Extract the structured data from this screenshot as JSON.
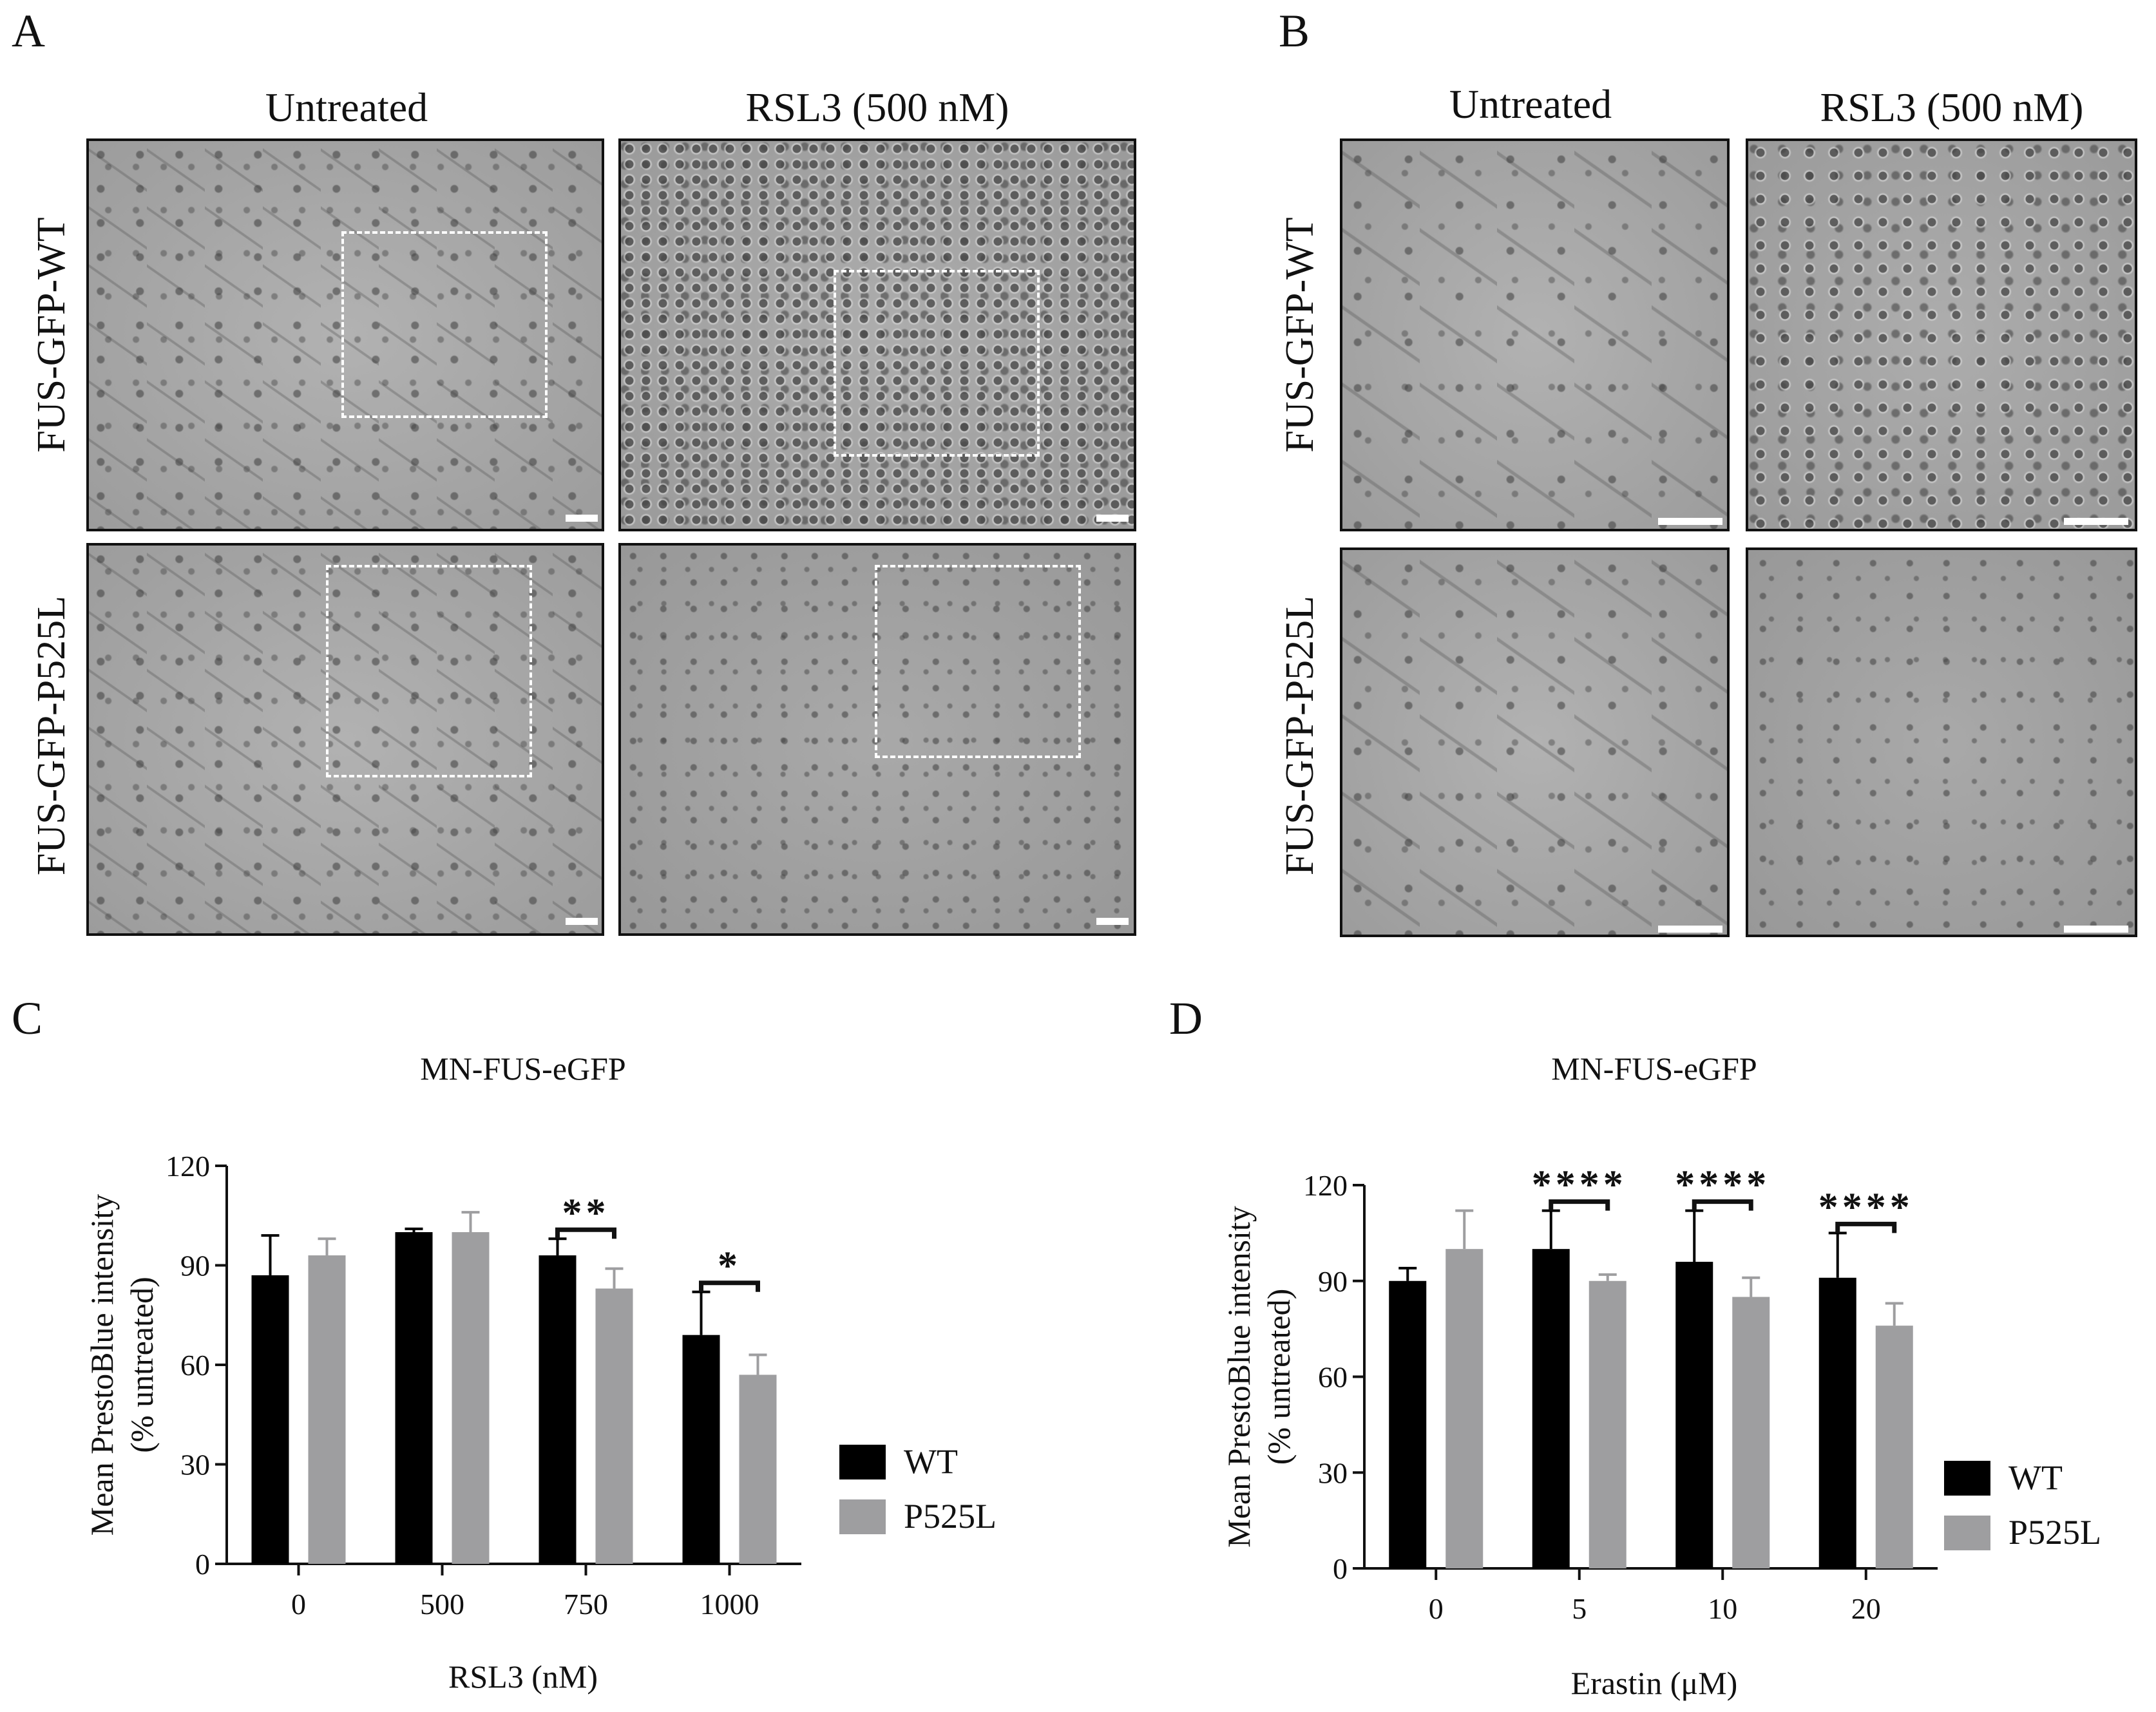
{
  "panels": {
    "A": {
      "label": "A",
      "columns": [
        "Untreated",
        "RSL3 (500 nM)"
      ],
      "rows": [
        "FUS-GFP-WT",
        "FUS-GFP-P525L"
      ]
    },
    "B": {
      "label": "B",
      "columns": [
        "Untreated",
        "RSL3 (500 nM)"
      ],
      "rows": [
        "FUS-GFP-WT",
        "FUS-GFP-P525L"
      ]
    },
    "C": {
      "label": "C"
    },
    "D": {
      "label": "D"
    }
  },
  "colors": {
    "WT": "#000000",
    "P525L": "#9e9ea0",
    "axis": "#111111",
    "image_border": "#111111",
    "inset_box": "#ffffff"
  },
  "chart_data": [
    {
      "type": "bar",
      "title": "MN-FUS-eGFP",
      "xlabel": "RSL3 (nM)",
      "ylabel": "Mean PrestoBlue intensity (% untreated)",
      "ylabel_lines": [
        "Mean PrestoBlue intensity",
        "(% untreated)"
      ],
      "ylim": [
        0,
        120
      ],
      "yticks": [
        0,
        30,
        60,
        90,
        120
      ],
      "categories": [
        "0",
        "500",
        "750",
        "1000"
      ],
      "series": [
        {
          "name": "WT",
          "values": [
            87,
            100,
            93,
            69
          ],
          "errors": [
            12,
            1,
            5,
            13
          ]
        },
        {
          "name": "P525L",
          "values": [
            93,
            100,
            83,
            57
          ],
          "errors": [
            5,
            6,
            6,
            6
          ]
        }
      ],
      "significance": [
        {
          "category": "750",
          "label": "**"
        },
        {
          "category": "1000",
          "label": "*"
        }
      ],
      "legend": "right",
      "grid": false
    },
    {
      "type": "bar",
      "title": "MN-FUS-eGFP",
      "xlabel": "Erastin (μM)",
      "ylabel": "Mean PrestoBlue intensity (% untreated)",
      "ylabel_lines": [
        "Mean PrestoBlue intensity",
        "(% untreated)"
      ],
      "ylim": [
        0,
        120
      ],
      "yticks": [
        0,
        30,
        60,
        90,
        120
      ],
      "categories": [
        "0",
        "5",
        "10",
        "20"
      ],
      "series": [
        {
          "name": "WT",
          "values": [
            90,
            100,
            96,
            91
          ],
          "errors": [
            4,
            12,
            16,
            14
          ]
        },
        {
          "name": "P525L",
          "values": [
            100,
            90,
            85,
            76
          ],
          "errors": [
            12,
            2,
            6,
            7
          ]
        }
      ],
      "significance": [
        {
          "category": "5",
          "label": "****"
        },
        {
          "category": "10",
          "label": "****"
        },
        {
          "category": "20",
          "label": "****"
        }
      ],
      "legend": "right",
      "grid": false
    }
  ]
}
